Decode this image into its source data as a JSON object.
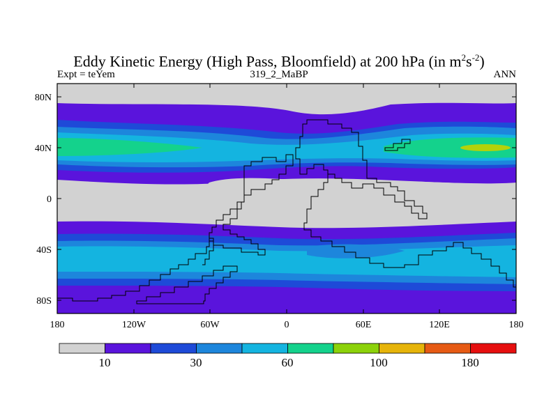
{
  "title_main": "Eddy Kinetic Energy (High Pass, Bloomfield) at 200 hPa (in m",
  "title_sup1": "2",
  "title_mid": "s",
  "title_sup2": "-2",
  "title_end": ")",
  "subtitle_left": "Expt = teYem",
  "subtitle_center": "319_2_MaBP",
  "subtitle_right": "ANN",
  "y_ticks": [
    "80N",
    "40N",
    "0",
    "40S",
    "80S"
  ],
  "x_ticks": [
    "180",
    "120W",
    "60W",
    "0",
    "60E",
    "120E",
    "180"
  ],
  "colorbar": {
    "colors": [
      "#d2d2d2",
      "#5a14dc",
      "#1e4ad8",
      "#1d86dc",
      "#14b4e0",
      "#14d28c",
      "#8cd20a",
      "#e6b40a",
      "#e65a14",
      "#e60f0f"
    ],
    "labels": [
      "10",
      "30",
      "60",
      "100",
      "180"
    ]
  },
  "colors": {
    "grey": "#d2d2d2",
    "purple": "#5a14dc",
    "blue": "#1e4ad8",
    "mid_blue": "#1d86dc",
    "cyan": "#14b4e0",
    "green": "#14d28c",
    "yellow_green": "#b4d20a"
  }
}
